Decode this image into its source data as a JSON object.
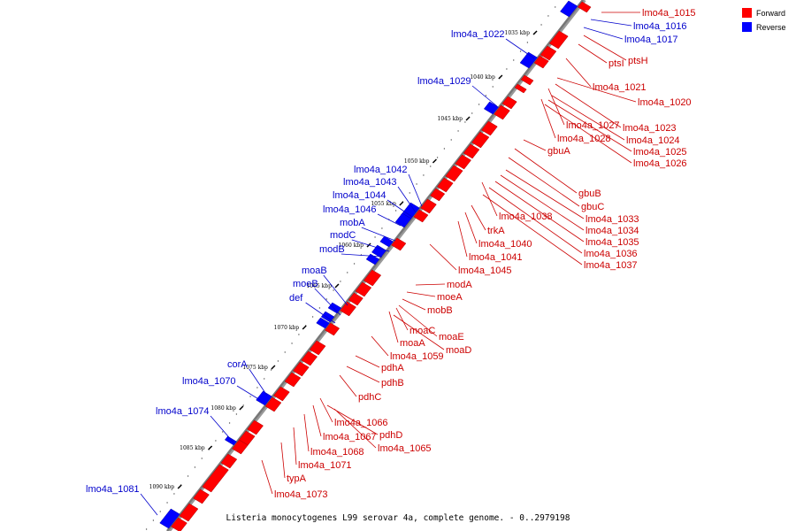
{
  "caption": "Listeria monocytogenes L99 serovar 4a, complete genome. - 0..2979198",
  "legend": [
    {
      "label": "Forward",
      "color": "#ff0000"
    },
    {
      "label": "Reverse",
      "color": "#0000ff"
    }
  ],
  "ticks": [
    "1035 kbp",
    "1040 kbp",
    "1045 kbp",
    "1050 kbp",
    "1055 kbp",
    "1060 kbp",
    "1065 kbp",
    "1070 kbp",
    "1075 kbp",
    "1080 kbp",
    "1085 kbp",
    "1090 kbp"
  ],
  "colors": {
    "forward": "#ff0000",
    "reverse": "#0000ff",
    "forward_label": "#cc0000",
    "reverse_label": "#0000cc",
    "axis": "#777777"
  },
  "reverse_labels": [
    "lmo4a_1022",
    "lmo4a_1029",
    "lmo4a_1042",
    "lmo4a_1043",
    "lmo4a_1044",
    "lmo4a_1046",
    "mobA",
    "modC",
    "modB",
    "moaB",
    "moeB",
    "def",
    "corA",
    "lmo4a_1070",
    "lmo4a_1074",
    "lmo4a_1081"
  ],
  "reverse_right_labels": [
    "lmo4a_1016",
    "lmo4a_1017"
  ],
  "forward_labels": [
    "lmo4a_1015",
    "ptsI",
    "ptsH",
    "lmo4a_1021",
    "lmo4a_1020",
    "lmo4a_1027",
    "lmo4a_1023",
    "lmo4a_1028",
    "lmo4a_1024",
    "lmo4a_1025",
    "lmo4a_1026",
    "gbuA",
    "gbuB",
    "gbuC",
    "lmo4a_1038",
    "lmo4a_1033",
    "lmo4a_1034",
    "trkA",
    "lmo4a_1035",
    "lmo4a_1040",
    "lmo4a_1036",
    "lmo4a_1041",
    "lmo4a_1037",
    "lmo4a_1045",
    "modA",
    "moeA",
    "mobB",
    "moaC",
    "moaE",
    "moaA",
    "moaD",
    "lmo4a_1059",
    "pdhA",
    "pdhB",
    "pdhC",
    "lmo4a_1066",
    "pdhD",
    "lmo4a_1067",
    "lmo4a_1065",
    "lmo4a_1068",
    "lmo4a_1071",
    "typA",
    "lmo4a_1073"
  ]
}
